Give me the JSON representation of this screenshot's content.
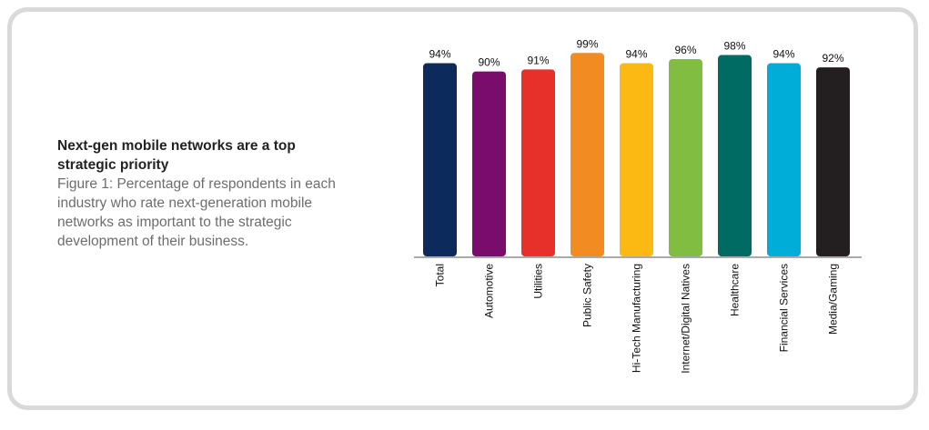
{
  "caption": {
    "title": "Next-gen mobile networks are a top strategic priority",
    "body": "Figure 1: Percentage of respondents in each industry who rate next-generation mobile networks as important to the strategic development of their business."
  },
  "chart_data": {
    "type": "bar",
    "title": "Next-gen mobile networks are a top strategic priority",
    "xlabel": "",
    "ylabel": "",
    "ylim": [
      0,
      100
    ],
    "grid": false,
    "categories": [
      "Total",
      "Automotive",
      "Utilities",
      "Public Safety",
      "Hi-Tech Manufacturing",
      "Internet/Digital Natives",
      "Healthcare",
      "Financial Services",
      "Media/Gaming"
    ],
    "values": [
      94,
      90,
      91,
      99,
      94,
      96,
      98,
      94,
      92
    ],
    "value_labels": [
      "94%",
      "90%",
      "91%",
      "99%",
      "94%",
      "96%",
      "98%",
      "94%",
      "92%"
    ],
    "colors": [
      "#0d2a5c",
      "#7a0c6b",
      "#e8302a",
      "#f28c22",
      "#fcb813",
      "#80bd41",
      "#006b63",
      "#00acd8",
      "#231f20"
    ]
  }
}
